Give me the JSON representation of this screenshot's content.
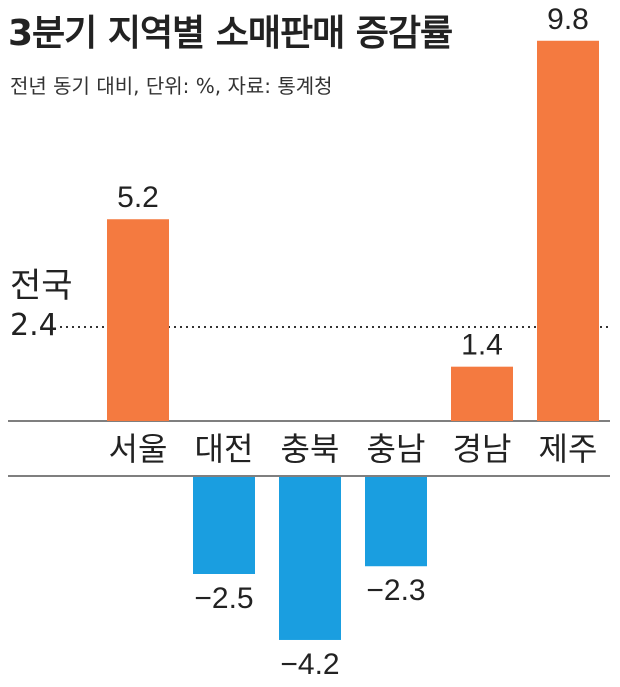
{
  "title": "3분기 지역별 소매판매 증감률",
  "subtitle": "전년 동기 대비, 단위: %, 자료: 통계청",
  "chart_data": {
    "type": "bar",
    "categories": [
      "서울",
      "대전",
      "충북",
      "충남",
      "경남",
      "제주"
    ],
    "values": [
      5.2,
      -2.5,
      -4.2,
      -2.3,
      1.4,
      9.8
    ],
    "value_labels": [
      "5.2",
      "−2.5",
      "−4.2",
      "−2.3",
      "1.4",
      "9.8"
    ],
    "reference": {
      "label": "전국",
      "value": 2.4,
      "value_label": "2.4",
      "style": "dotted"
    },
    "title": "3분기 지역별 소매판매 증감률",
    "xlabel": "",
    "ylabel": "",
    "grid": false,
    "colors": {
      "positive": "#f47a40",
      "negative": "#1a9ee0"
    }
  }
}
